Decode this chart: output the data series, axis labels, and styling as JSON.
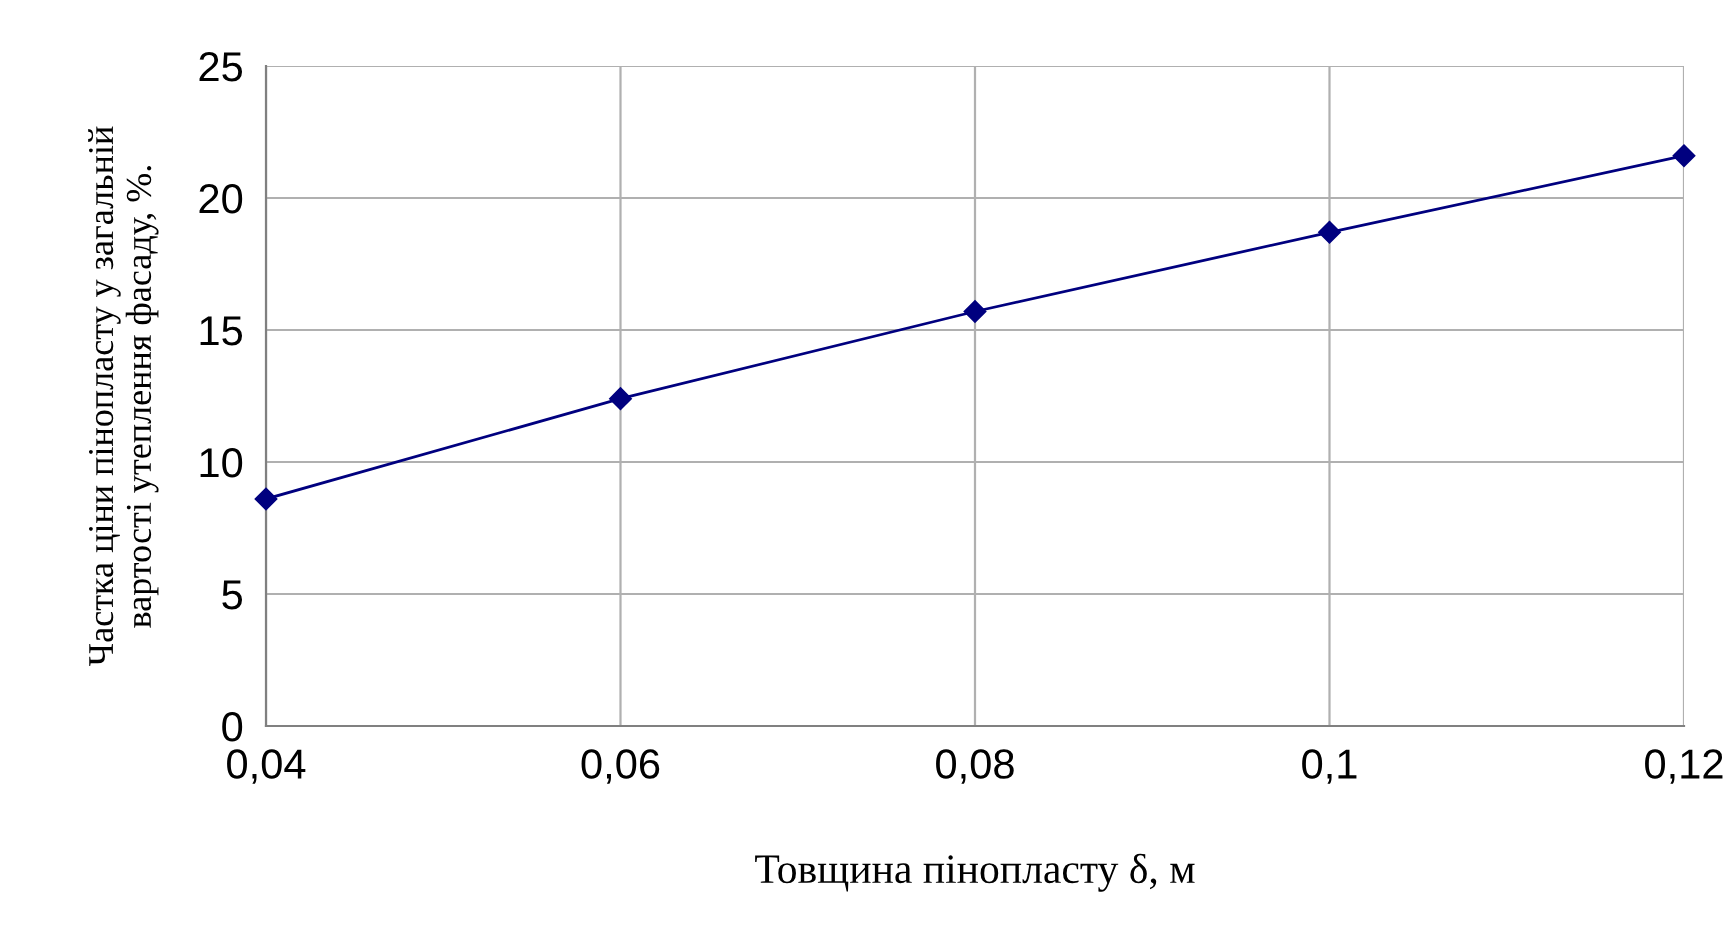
{
  "chart_data": {
    "type": "line",
    "x": [
      0.04,
      0.06,
      0.08,
      0.1,
      0.12
    ],
    "series": [
      {
        "color": "#00007f",
        "values": [
          8.6,
          12.4,
          15.7,
          18.7,
          21.6
        ]
      }
    ],
    "xlim": [
      0.04,
      0.12
    ],
    "xticks": [
      {
        "value": 0.04,
        "label": "0,04"
      },
      {
        "value": 0.06,
        "label": "0,06"
      },
      {
        "value": 0.08,
        "label": "0,08"
      },
      {
        "value": 0.1,
        "label": "0,1"
      },
      {
        "value": 0.12,
        "label": "0,12"
      }
    ],
    "ylim": [
      0,
      25
    ],
    "yticks": [
      0,
      5,
      10,
      15,
      20,
      25
    ],
    "xlabel": "Товщина пінопласту δ, м",
    "ylabel": "Частка ціни пінопласту у загальній\nвартості утеплення фасаду, %.",
    "grid": true,
    "marker": "diamond",
    "line_style": "solid"
  }
}
